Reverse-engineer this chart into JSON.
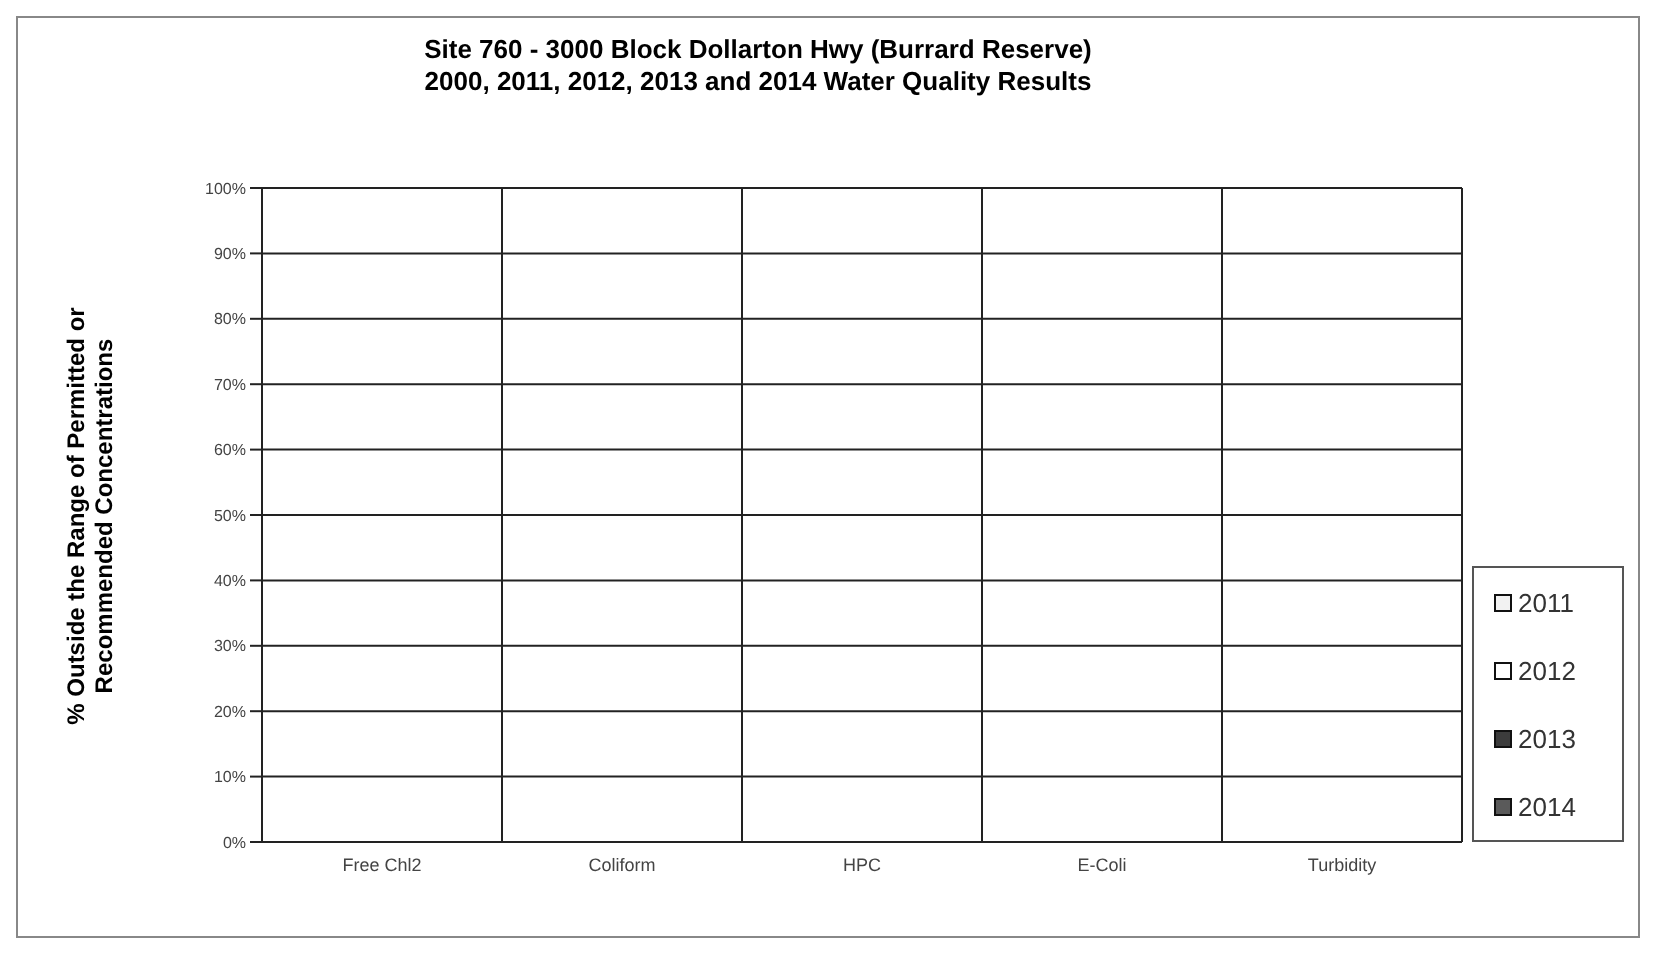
{
  "chart_data": {
    "type": "bar",
    "title": "Site 760 - 3000 Block Dollarton Hwy (Burrard Reserve)\n2000, 2011, 2012, 2013 and 2014 Water Quality Results",
    "ylabel": "% Outside the Range of Permitted or\nRecommended Concentrations",
    "categories": [
      "Free Chl2",
      "Coliform",
      "HPC",
      "E-Coli",
      "Turbidity"
    ],
    "series": [
      {
        "name": "2011",
        "color": "#f2f2f2",
        "values": [
          0,
          0,
          0,
          0,
          0
        ]
      },
      {
        "name": "2012",
        "color": "#ffffff",
        "values": [
          0,
          0,
          0,
          0,
          0
        ]
      },
      {
        "name": "2013",
        "color": "#3c3c3c",
        "values": [
          0,
          0,
          0,
          0,
          0
        ]
      },
      {
        "name": "2014",
        "color": "#5a5a5a",
        "values": [
          0,
          0,
          0,
          0,
          0
        ]
      }
    ],
    "ylim": [
      0,
      100
    ],
    "yticks": [
      {
        "value": 0,
        "label": "0%"
      },
      {
        "value": 10,
        "label": "10%"
      },
      {
        "value": 20,
        "label": "20%"
      },
      {
        "value": 30,
        "label": "30%"
      },
      {
        "value": 40,
        "label": "40%"
      },
      {
        "value": 50,
        "label": "50%"
      },
      {
        "value": 60,
        "label": "60%"
      },
      {
        "value": 70,
        "label": "70%"
      },
      {
        "value": 80,
        "label": "80%"
      },
      {
        "value": 90,
        "label": "90%"
      },
      {
        "value": 100,
        "label": "100%"
      }
    ],
    "grid": true,
    "legend": "right"
  }
}
